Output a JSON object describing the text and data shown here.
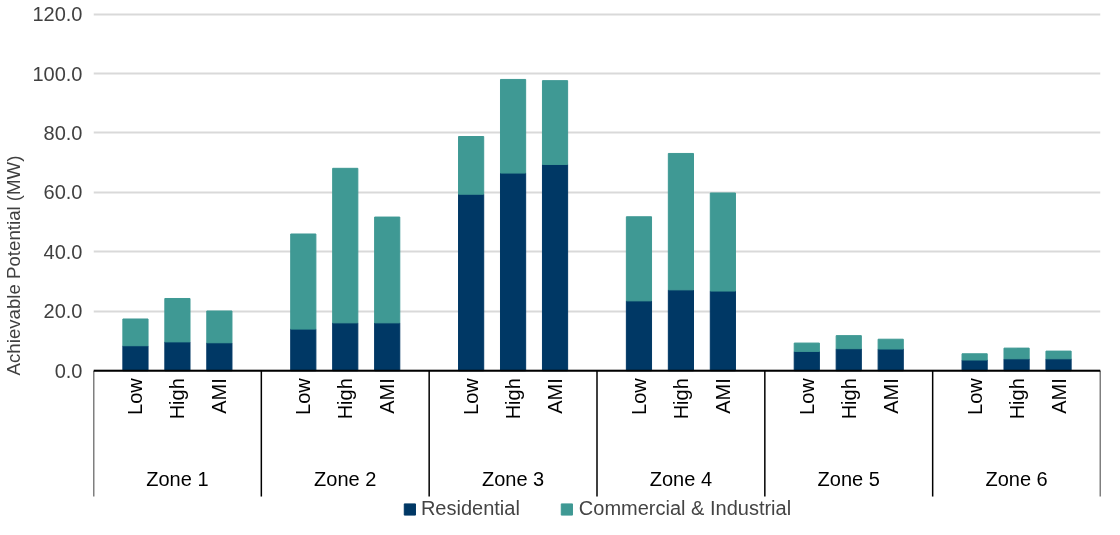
{
  "chart_data": {
    "type": "bar",
    "stacked": true,
    "ylabel": "Achievable Potential (MW)",
    "categories": [
      "Low",
      "High",
      "AMI",
      "Low",
      "High",
      "AMI",
      "Low",
      "High",
      "AMI",
      "Low",
      "High",
      "AMI",
      "Low",
      "High",
      "AMI",
      "Low",
      "High",
      "AMI"
    ],
    "annotations": [
      "Zone 1",
      "Zone 2",
      "Zone 3",
      "Zone 4",
      "Zone 5",
      "Zone 6"
    ],
    "series": [
      {
        "name": "Residential",
        "color": "#003865",
        "values": [
          8.4,
          9.7,
          9.4,
          14.0,
          16.1,
          16.1,
          59.4,
          66.5,
          69.4,
          23.5,
          27.2,
          26.8,
          6.5,
          7.4,
          7.3,
          3.6,
          4.0,
          4.0
        ]
      },
      {
        "name": "Commercial & Industrial",
        "color": "#3f9994",
        "values": [
          9.0,
          14.6,
          10.7,
          32.0,
          52.0,
          35.6,
          19.4,
          31.5,
          28.2,
          28.3,
          45.9,
          33.0,
          2.8,
          4.4,
          3.3,
          2.1,
          3.6,
          2.6
        ]
      }
    ],
    "ylim": [
      0,
      120
    ],
    "yticks": [
      {
        "value": 0,
        "label": "0.0"
      },
      {
        "value": 20,
        "label": "20.0"
      },
      {
        "value": 40,
        "label": "40.0"
      },
      {
        "value": 60,
        "label": "60.0"
      },
      {
        "value": 80,
        "label": "80.0"
      },
      {
        "value": 100,
        "label": "100.0"
      },
      {
        "value": 120,
        "label": "120.0"
      }
    ],
    "grid": "y",
    "legend": "bottom"
  }
}
